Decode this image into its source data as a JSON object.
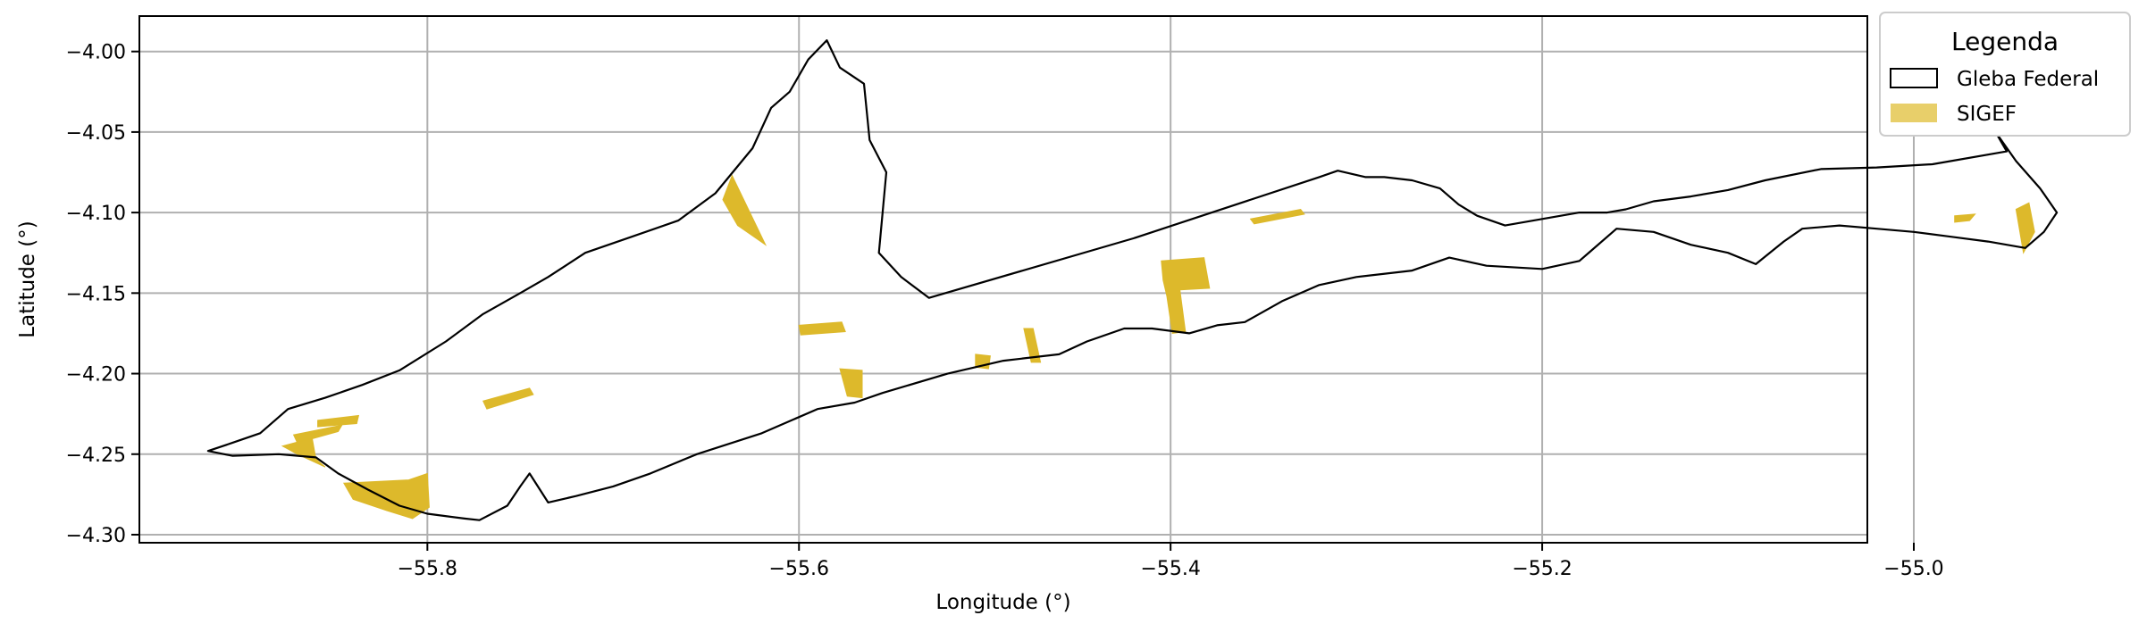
{
  "chart_data": {
    "type": "map",
    "xlabel": "Longitude (°)",
    "ylabel": "Latitude (°)",
    "xlim": [
      -55.955,
      -55.025
    ],
    "ylim": [
      -4.305,
      -3.978
    ],
    "x_ticks": [
      {
        "value": -55.8,
        "label": "−55.8"
      },
      {
        "value": -55.6,
        "label": "−55.6"
      },
      {
        "value": -55.4,
        "label": "−55.4"
      },
      {
        "value": -55.2,
        "label": "−55.2"
      },
      {
        "value": -55.0,
        "label": "−55.0"
      }
    ],
    "y_ticks": [
      {
        "value": -4.0,
        "label": "−4.00"
      },
      {
        "value": -4.05,
        "label": "−4.05"
      },
      {
        "value": -4.1,
        "label": "−4.10"
      },
      {
        "value": -4.15,
        "label": "−4.15"
      },
      {
        "value": -4.2,
        "label": "−4.20"
      },
      {
        "value": -4.25,
        "label": "−4.25"
      },
      {
        "value": -4.3,
        "label": "−4.30"
      }
    ],
    "grid": true,
    "legend": {
      "title": "Legenda",
      "placement": "outside-top-right",
      "entries": [
        {
          "label": "Gleba Federal",
          "style": "outline",
          "color": "#000000"
        },
        {
          "label": "SIGEF",
          "style": "fill",
          "color": "#e8cf6a"
        }
      ]
    },
    "layers": {
      "gleba_federal": {
        "name": "Gleba Federal",
        "stroke": "#000000",
        "fill": "none",
        "boundary": [
          [
            -55.772,
            -4.291
          ],
          [
            -55.757,
            -4.282
          ],
          [
            -55.75,
            -4.27
          ],
          [
            -55.745,
            -4.262
          ],
          [
            -55.735,
            -4.28
          ],
          [
            -55.72,
            -4.276
          ],
          [
            -55.7,
            -4.27
          ],
          [
            -55.68,
            -4.262
          ],
          [
            -55.655,
            -4.25
          ],
          [
            -55.62,
            -4.237
          ],
          [
            -55.59,
            -4.222
          ],
          [
            -55.57,
            -4.218
          ],
          [
            -55.555,
            -4.212
          ],
          [
            -55.52,
            -4.2
          ],
          [
            -55.49,
            -4.192
          ],
          [
            -55.46,
            -4.188
          ],
          [
            -55.445,
            -4.18
          ],
          [
            -55.425,
            -4.172
          ],
          [
            -55.41,
            -4.172
          ],
          [
            -55.39,
            -4.175
          ],
          [
            -55.375,
            -4.17
          ],
          [
            -55.36,
            -4.168
          ],
          [
            -55.34,
            -4.155
          ],
          [
            -55.32,
            -4.145
          ],
          [
            -55.3,
            -4.14
          ],
          [
            -55.27,
            -4.136
          ],
          [
            -55.25,
            -4.128
          ],
          [
            -55.23,
            -4.133
          ],
          [
            -55.2,
            -4.135
          ],
          [
            -55.18,
            -4.13
          ],
          [
            -55.16,
            -4.11
          ],
          [
            -55.14,
            -4.112
          ],
          [
            -55.12,
            -4.12
          ],
          [
            -55.1,
            -4.125
          ],
          [
            -55.085,
            -4.132
          ],
          [
            -55.07,
            -4.118
          ],
          [
            -55.06,
            -4.11
          ],
          [
            -55.04,
            -4.108
          ],
          [
            -55.02,
            -4.11
          ],
          [
            -55.0,
            -4.112
          ],
          [
            -54.98,
            -4.115
          ],
          [
            -54.96,
            -4.118
          ],
          [
            -54.94,
            -4.122
          ],
          [
            -54.93,
            -4.112
          ],
          [
            -54.923,
            -4.1
          ],
          [
            -54.932,
            -4.085
          ],
          [
            -54.945,
            -4.068
          ],
          [
            -54.956,
            -4.05
          ],
          [
            -54.95,
            -4.062
          ],
          [
            -54.99,
            -4.07
          ],
          [
            -55.02,
            -4.072
          ],
          [
            -55.05,
            -4.073
          ],
          [
            -55.08,
            -4.08
          ],
          [
            -55.1,
            -4.086
          ],
          [
            -55.12,
            -4.09
          ],
          [
            -55.14,
            -4.093
          ],
          [
            -55.155,
            -4.098
          ],
          [
            -55.165,
            -4.1
          ],
          [
            -55.18,
            -4.1
          ],
          [
            -55.2,
            -4.104
          ],
          [
            -55.22,
            -4.108
          ],
          [
            -55.235,
            -4.102
          ],
          [
            -55.245,
            -4.095
          ],
          [
            -55.255,
            -4.085
          ],
          [
            -55.27,
            -4.08
          ],
          [
            -55.285,
            -4.078
          ],
          [
            -55.295,
            -4.078
          ],
          [
            -55.31,
            -4.074
          ],
          [
            -55.32,
            -4.078
          ],
          [
            -55.42,
            -4.116
          ],
          [
            -55.53,
            -4.153
          ],
          [
            -55.545,
            -4.14
          ],
          [
            -55.557,
            -4.125
          ],
          [
            -55.553,
            -4.075
          ],
          [
            -55.562,
            -4.055
          ],
          [
            -55.565,
            -4.02
          ],
          [
            -55.578,
            -4.01
          ],
          [
            -55.585,
            -3.993
          ],
          [
            -55.595,
            -4.005
          ],
          [
            -55.605,
            -4.025
          ],
          [
            -55.615,
            -4.035
          ],
          [
            -55.625,
            -4.06
          ],
          [
            -55.645,
            -4.088
          ],
          [
            -55.665,
            -4.105
          ],
          [
            -55.69,
            -4.115
          ],
          [
            -55.715,
            -4.125
          ],
          [
            -55.735,
            -4.14
          ],
          [
            -55.75,
            -4.15
          ],
          [
            -55.77,
            -4.163
          ],
          [
            -55.79,
            -4.18
          ],
          [
            -55.815,
            -4.198
          ],
          [
            -55.835,
            -4.207
          ],
          [
            -55.855,
            -4.215
          ],
          [
            -55.875,
            -4.222
          ],
          [
            -55.89,
            -4.237
          ],
          [
            -55.905,
            -4.243
          ],
          [
            -55.918,
            -4.248
          ],
          [
            -55.905,
            -4.251
          ],
          [
            -55.88,
            -4.25
          ],
          [
            -55.86,
            -4.252
          ],
          [
            -55.848,
            -4.262
          ],
          [
            -55.832,
            -4.272
          ],
          [
            -55.815,
            -4.282
          ],
          [
            -55.8,
            -4.287
          ],
          [
            -55.78,
            -4.29
          ]
        ]
      },
      "sigef": {
        "name": "SIGEF",
        "fill": "#ddb92b",
        "parcels": [
          [
            [
              -55.636,
              -4.077
            ],
            [
              -55.618,
              -4.12
            ],
            [
              -55.633,
              -4.108
            ],
            [
              -55.641,
              -4.092
            ]
          ],
          [
            [
              -55.6,
              -4.17
            ],
            [
              -55.577,
              -4.168
            ],
            [
              -55.575,
              -4.174
            ],
            [
              -55.599,
              -4.176
            ]
          ],
          [
            [
              -55.77,
              -4.217
            ],
            [
              -55.745,
              -4.209
            ],
            [
              -55.743,
              -4.213
            ],
            [
              -55.768,
              -4.222
            ]
          ],
          [
            [
              -55.578,
              -4.197
            ],
            [
              -55.566,
              -4.198
            ],
            [
              -55.566,
              -4.215
            ],
            [
              -55.574,
              -4.214
            ]
          ],
          [
            [
              -55.505,
              -4.188
            ],
            [
              -55.497,
              -4.189
            ],
            [
              -55.498,
              -4.197
            ],
            [
              -55.505,
              -4.196
            ]
          ],
          [
            [
              -55.479,
              -4.172
            ],
            [
              -55.474,
              -4.172
            ],
            [
              -55.47,
              -4.193
            ],
            [
              -55.475,
              -4.193
            ]
          ],
          [
            [
              -55.405,
              -4.13
            ],
            [
              -55.382,
              -4.128
            ],
            [
              -55.379,
              -4.147
            ],
            [
              -55.395,
              -4.148
            ],
            [
              -55.392,
              -4.174
            ],
            [
              -55.399,
              -4.175
            ],
            [
              -55.402,
              -4.152
            ],
            [
              -55.404,
              -4.142
            ]
          ],
          [
            [
              -55.357,
              -4.104
            ],
            [
              -55.33,
              -4.098
            ],
            [
              -55.328,
              -4.101
            ],
            [
              -55.355,
              -4.107
            ]
          ],
          [
            [
              -54.978,
              -4.102
            ],
            [
              -54.967,
              -4.101
            ],
            [
              -54.97,
              -4.105
            ],
            [
              -54.978,
              -4.106
            ]
          ],
          [
            [
              -54.945,
              -4.098
            ],
            [
              -54.938,
              -4.094
            ],
            [
              -54.935,
              -4.112
            ],
            [
              -54.941,
              -4.125
            ]
          ],
          [
            [
              -55.859,
              -4.229
            ],
            [
              -55.837,
              -4.226
            ],
            [
              -55.838,
              -4.231
            ],
            [
              -55.859,
              -4.233
            ]
          ],
          [
            [
              -55.872,
              -4.238
            ],
            [
              -55.846,
              -4.232
            ],
            [
              -55.848,
              -4.236
            ],
            [
              -55.87,
              -4.243
            ]
          ],
          [
            [
              -55.878,
              -4.245
            ],
            [
              -55.862,
              -4.24
            ],
            [
              -55.86,
              -4.253
            ],
            [
              -55.855,
              -4.258
            ],
            [
              -55.87,
              -4.25
            ]
          ],
          [
            [
              -55.845,
              -4.268
            ],
            [
              -55.81,
              -4.266
            ],
            [
              -55.8,
              -4.262
            ],
            [
              -55.799,
              -4.283
            ],
            [
              -55.808,
              -4.29
            ],
            [
              -55.822,
              -4.285
            ],
            [
              -55.84,
              -4.278
            ]
          ]
        ]
      }
    }
  }
}
